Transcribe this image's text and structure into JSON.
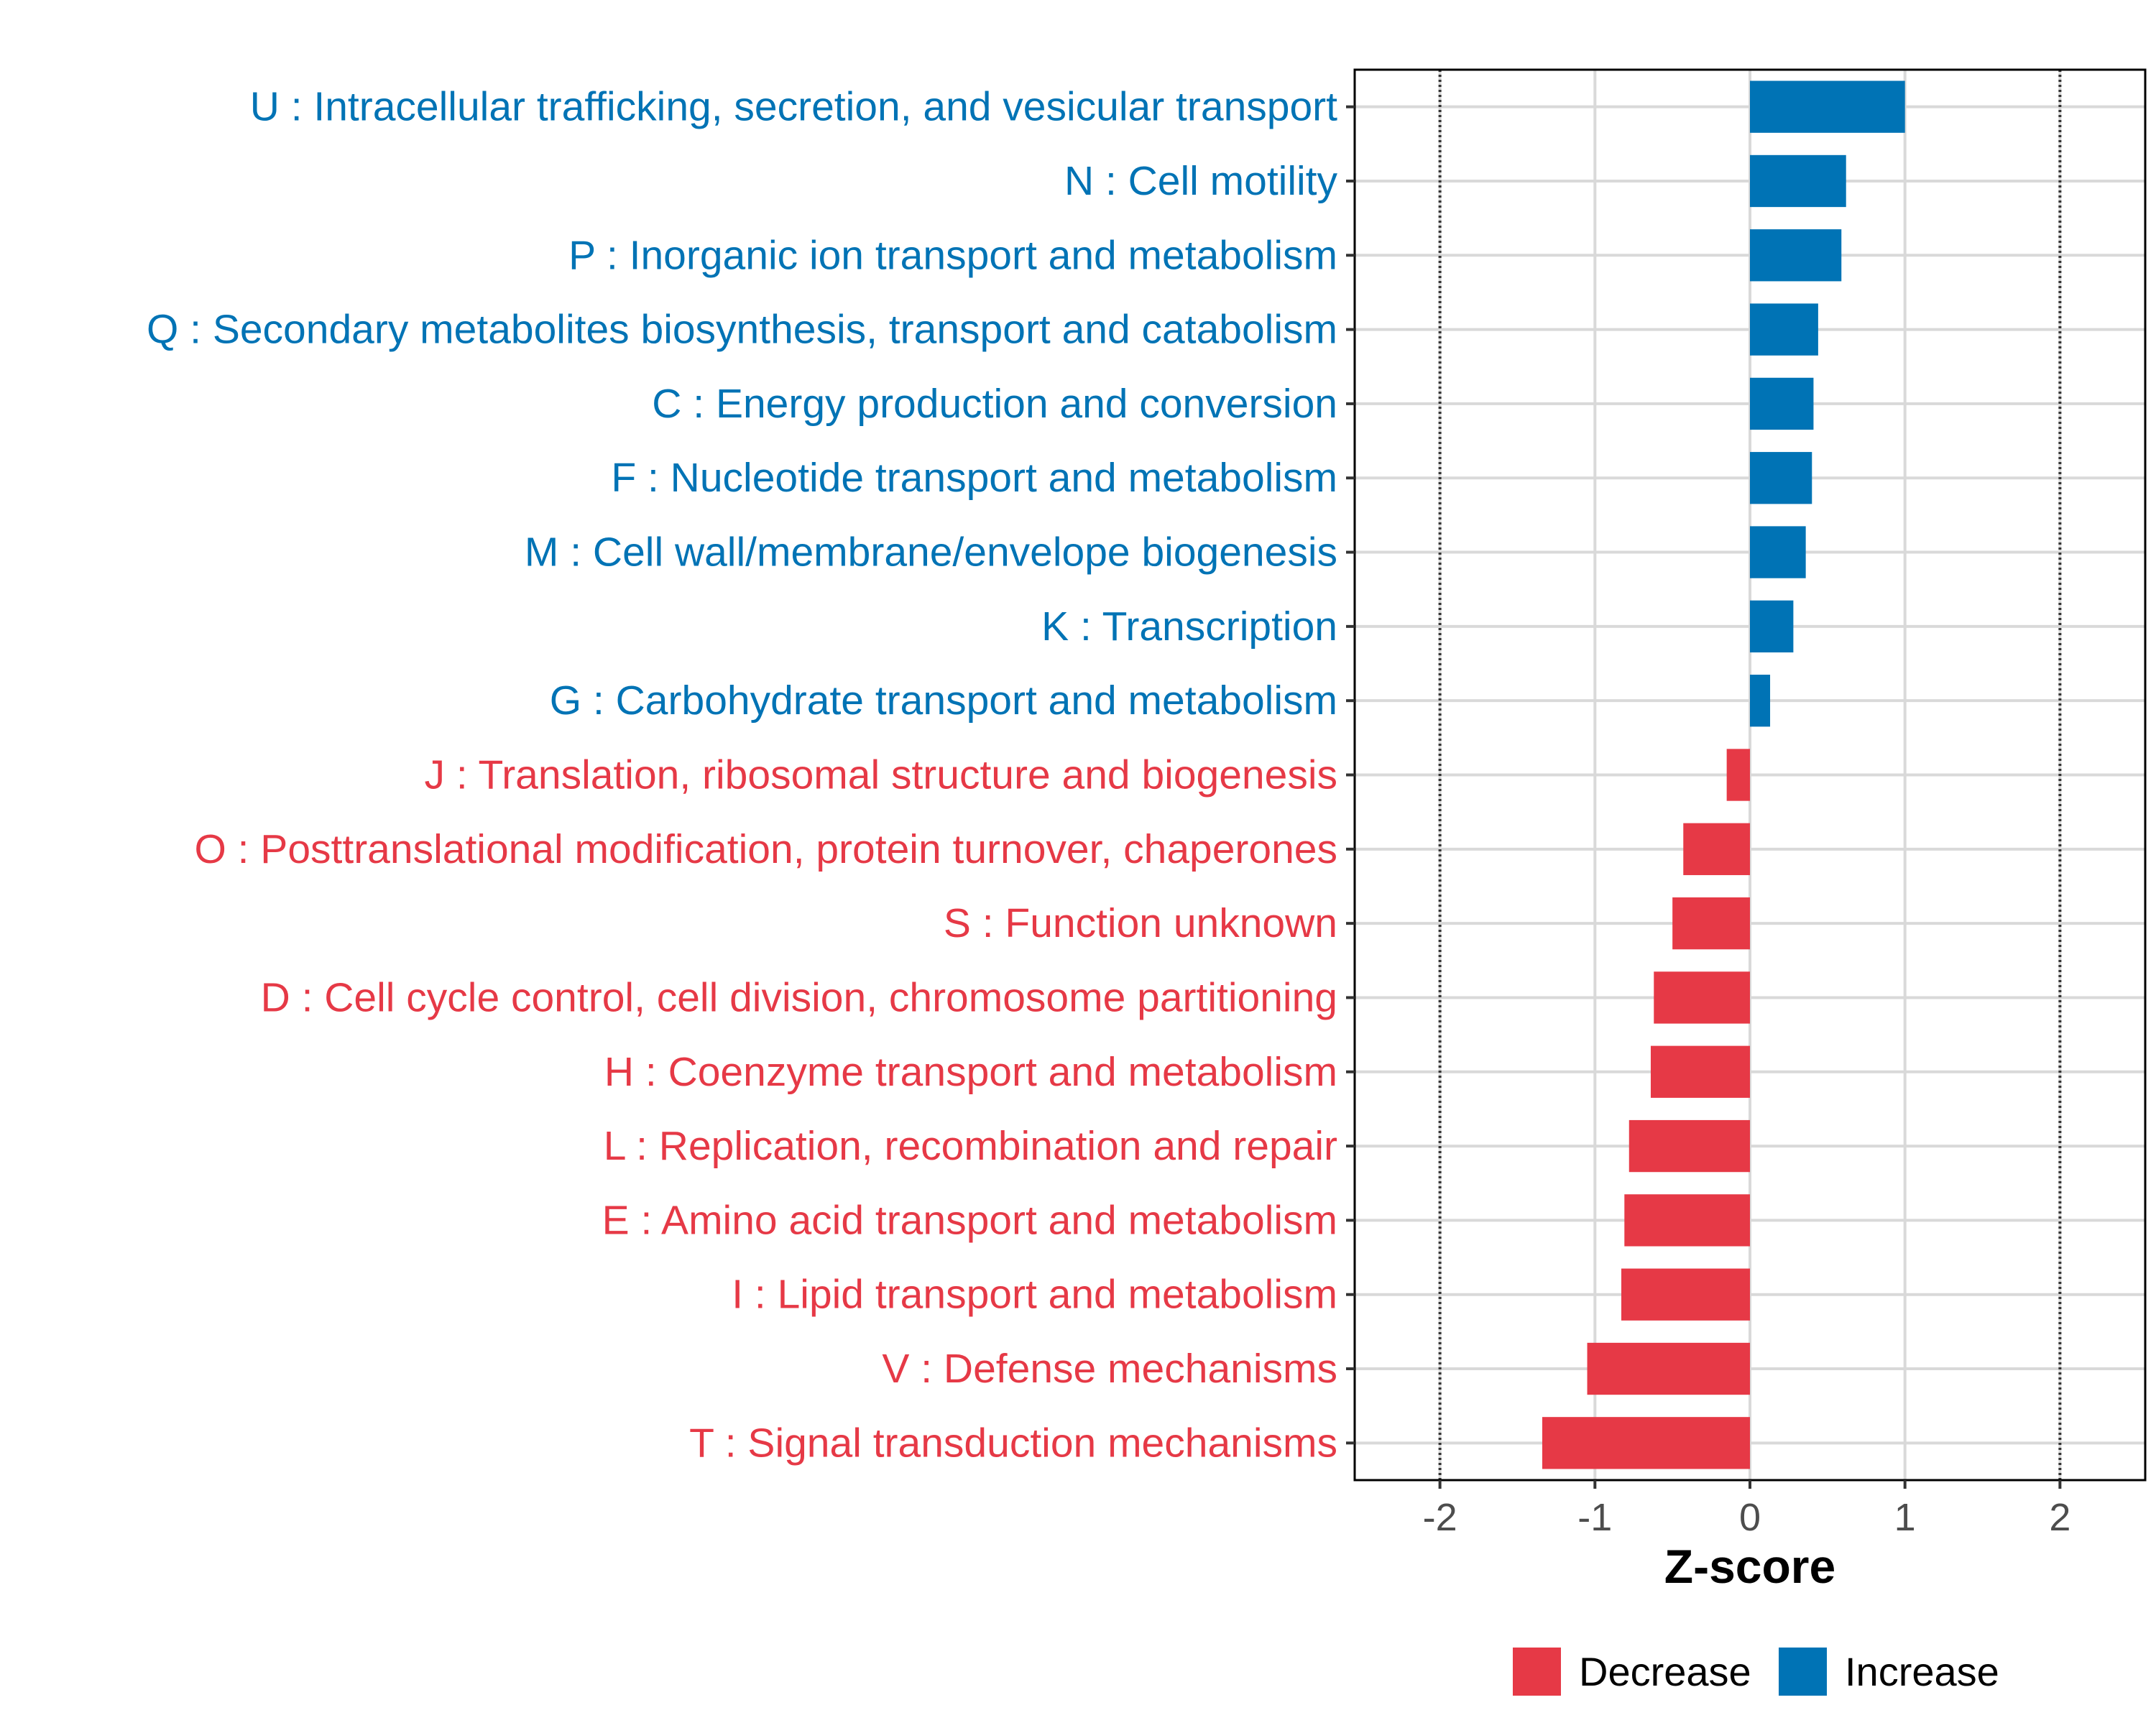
{
  "chart_data": {
    "type": "bar",
    "orientation": "horizontal",
    "title": "",
    "xlabel": "Z-score",
    "ylabel": "",
    "xlim": [
      -2.55,
      2.55
    ],
    "x_ticks": [
      -2,
      -1,
      0,
      1,
      2
    ],
    "x_tick_labels": [
      "-2",
      "-1",
      "0",
      "1",
      "2"
    ],
    "reference_lines": [
      -2,
      2
    ],
    "grid": true,
    "colors": {
      "Increase": "#0073b5",
      "Decrease": "#e63946",
      "grid": "#d9d9d9",
      "axis": "#000000",
      "tick_text": "#4d4d4d"
    },
    "categories": [
      "U : Intracellular trafficking, secretion, and vesicular transport",
      "N : Cell motility",
      "P : Inorganic ion transport and metabolism",
      "Q : Secondary metabolites biosynthesis, transport and catabolism",
      "C : Energy production and conversion",
      "F : Nucleotide transport and metabolism",
      "M : Cell wall/membrane/envelope biogenesis",
      "K : Transcription",
      "G : Carbohydrate transport and metabolism",
      "J : Translation, ribosomal structure and biogenesis",
      "O : Posttranslational modification, protein turnover, chaperones",
      "S : Function unknown",
      "D : Cell cycle control, cell division, chromosome partitioning",
      "H : Coenzyme transport and metabolism",
      "L : Replication, recombination and repair",
      "E : Amino acid transport and metabolism",
      "I : Lipid transport and metabolism",
      "V : Defense mechanisms",
      "T : Signal transduction mechanisms"
    ],
    "values": [
      1.0,
      0.62,
      0.59,
      0.44,
      0.41,
      0.4,
      0.36,
      0.28,
      0.13,
      -0.15,
      -0.43,
      -0.5,
      -0.62,
      -0.64,
      -0.78,
      -0.81,
      -0.83,
      -1.05,
      -1.34
    ],
    "groups": [
      "Increase",
      "Increase",
      "Increase",
      "Increase",
      "Increase",
      "Increase",
      "Increase",
      "Increase",
      "Increase",
      "Decrease",
      "Decrease",
      "Decrease",
      "Decrease",
      "Decrease",
      "Decrease",
      "Decrease",
      "Decrease",
      "Decrease",
      "Decrease"
    ],
    "legend": {
      "placement": "bottom",
      "entries": [
        "Decrease",
        "Increase"
      ]
    }
  }
}
